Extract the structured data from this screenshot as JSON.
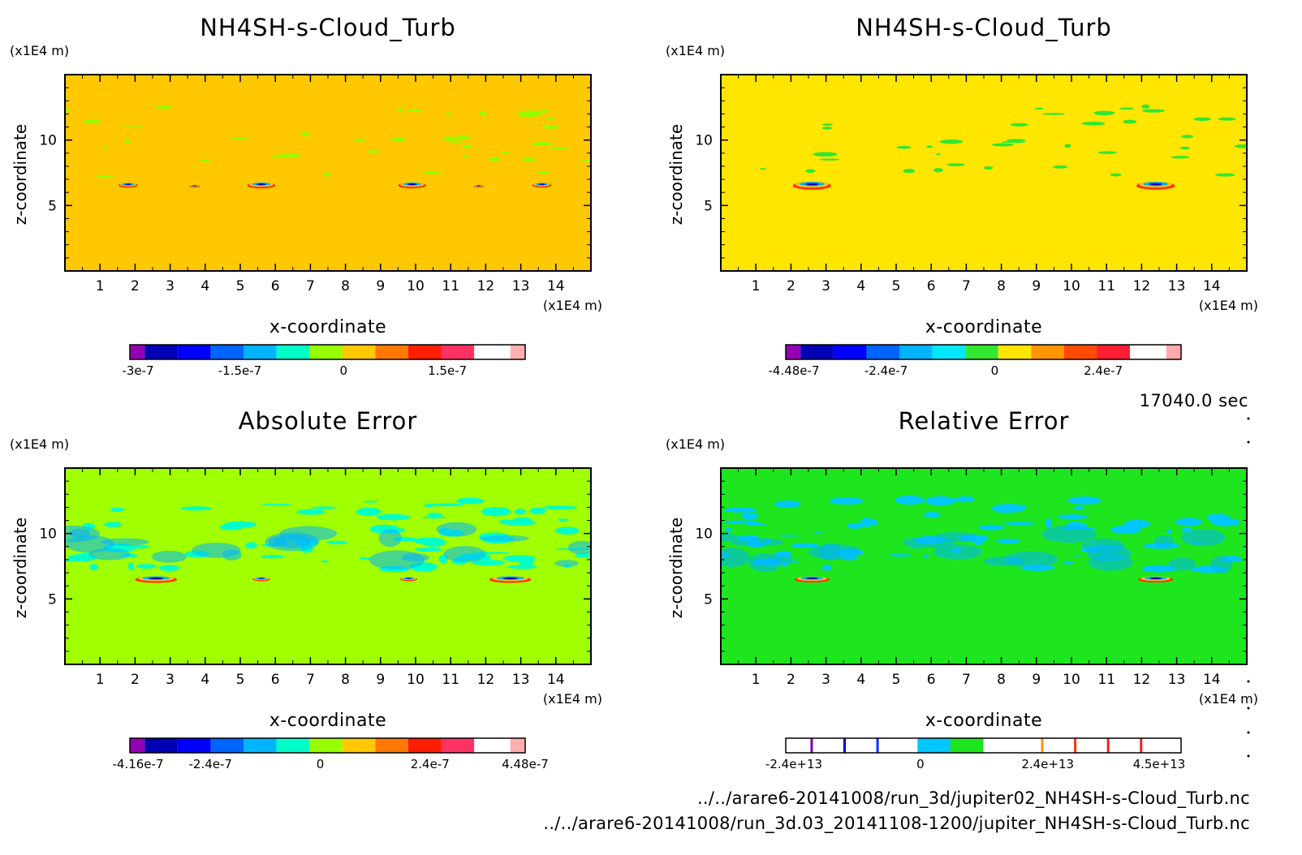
{
  "timestamp": "17040.0 sec",
  "file_paths": [
    "../../arare6-20141008/run_3d/jupiter02_NH4SH-s-Cloud_Turb.nc",
    "../../arare6-20141008/run_3d.03_20141108-1200/jupiter_NH4SH-s-Cloud_Turb.nc"
  ],
  "chart_data": [
    {
      "type": "heatmap",
      "title": "NH4SH-s-Cloud_Turb",
      "xlabel": "x-coordinate",
      "ylabel": "z-coordinate",
      "x_unit": "(x1E4 m)",
      "y_unit": "(x1E4 m)",
      "xlim": [
        0,
        15
      ],
      "ylim": [
        0,
        15
      ],
      "x_ticks": [
        1,
        2,
        3,
        4,
        5,
        6,
        7,
        8,
        9,
        10,
        11,
        12,
        13,
        14
      ],
      "y_ticks": [
        5,
        10
      ],
      "background_color": "#ffc800",
      "colorbar": {
        "colors": [
          "#9600b4",
          "#0000b4",
          "#0000ff",
          "#0064ff",
          "#00b4ff",
          "#00ffc8",
          "#96ff00",
          "#ffc800",
          "#ff7800",
          "#ff1e00",
          "#ff3264",
          "#ffafaf"
        ],
        "labels": [
          {
            "value": -3e-07,
            "text": "-3e-7"
          },
          {
            "value": -1.5e-07,
            "text": "-1.5e-7"
          },
          {
            "value": 0,
            "text": "0"
          },
          {
            "value": 1.5e-07,
            "text": "1.5e-7"
          }
        ]
      },
      "features": [
        {
          "x": 1.8,
          "z": 6.6,
          "w": 0.55,
          "h": 0.35
        },
        {
          "x": 3.7,
          "z": 6.5,
          "w": 0.3,
          "h": 0.2
        },
        {
          "x": 5.6,
          "z": 6.6,
          "w": 0.8,
          "h": 0.45
        },
        {
          "x": 9.9,
          "z": 6.6,
          "w": 0.8,
          "h": 0.45
        },
        {
          "x": 11.8,
          "z": 6.5,
          "w": 0.3,
          "h": 0.2
        },
        {
          "x": 13.6,
          "z": 6.6,
          "w": 0.55,
          "h": 0.35
        }
      ]
    },
    {
      "type": "heatmap",
      "title": "NH4SH-s-Cloud_Turb",
      "xlabel": "x-coordinate",
      "ylabel": "z-coordinate",
      "x_unit": "(x1E4 m)",
      "y_unit": "(x1E4 m)",
      "xlim": [
        0,
        15
      ],
      "ylim": [
        0,
        15
      ],
      "x_ticks": [
        1,
        2,
        3,
        4,
        5,
        6,
        7,
        8,
        9,
        10,
        11,
        12,
        13,
        14
      ],
      "y_ticks": [
        5,
        10
      ],
      "background_color": "#ffe600",
      "colorbar": {
        "colors": [
          "#9600b4",
          "#0000b4",
          "#0000ff",
          "#0064ff",
          "#00b4ff",
          "#00e6ff",
          "#32e632",
          "#ffe600",
          "#ff9600",
          "#ff4b00",
          "#ff1e32",
          "#ffaaaa"
        ],
        "labels": [
          {
            "value": -4.48e-07,
            "text": "-4.48e-7"
          },
          {
            "value": -2.4e-07,
            "text": "-2.4e-7"
          },
          {
            "value": 0,
            "text": "0"
          },
          {
            "value": 2.4e-07,
            "text": "2.4e-7"
          }
        ]
      },
      "features": [
        {
          "x": 2.6,
          "z": 6.6,
          "w": 1.1,
          "h": 0.6
        },
        {
          "x": 12.4,
          "z": 6.6,
          "w": 1.1,
          "h": 0.6
        }
      ]
    },
    {
      "type": "heatmap",
      "title": "Absolute Error",
      "xlabel": "x-coordinate",
      "ylabel": "z-coordinate",
      "x_unit": "(x1E4 m)",
      "y_unit": "(x1E4 m)",
      "xlim": [
        0,
        15
      ],
      "ylim": [
        0,
        15
      ],
      "x_ticks": [
        1,
        2,
        3,
        4,
        5,
        6,
        7,
        8,
        9,
        10,
        11,
        12,
        13,
        14
      ],
      "y_ticks": [
        5,
        10
      ],
      "background_color": "#a0ff00",
      "colorbar": {
        "colors": [
          "#9600b4",
          "#0000b4",
          "#0000ff",
          "#0064ff",
          "#00b4ff",
          "#00ffc8",
          "#96ff00",
          "#ffc800",
          "#ff7800",
          "#ff1e00",
          "#ff3264",
          "#ffafaf"
        ],
        "labels": [
          {
            "value": -4.16e-07,
            "text": "-4.16e-7"
          },
          {
            "value": -2.4e-07,
            "text": "-2.4e-7"
          },
          {
            "value": 0,
            "text": "0"
          },
          {
            "value": 2.4e-07,
            "text": "2.4e-7"
          },
          {
            "value": 4.48e-07,
            "text": "4.48e-7"
          }
        ]
      },
      "features": [
        {
          "x": 2.6,
          "z": 6.55,
          "w": 1.2,
          "h": 0.5
        },
        {
          "x": 5.6,
          "z": 6.55,
          "w": 0.5,
          "h": 0.3
        },
        {
          "x": 9.8,
          "z": 6.55,
          "w": 0.5,
          "h": 0.3
        },
        {
          "x": 12.7,
          "z": 6.55,
          "w": 1.2,
          "h": 0.5
        }
      ]
    },
    {
      "type": "heatmap",
      "title": "Relative Error",
      "xlabel": "x-coordinate",
      "ylabel": "z-coordinate",
      "x_unit": "(x1E4 m)",
      "y_unit": "(x1E4 m)",
      "xlim": [
        0,
        15
      ],
      "ylim": [
        0,
        15
      ],
      "x_ticks": [
        1,
        2,
        3,
        4,
        5,
        6,
        7,
        8,
        9,
        10,
        11,
        12,
        13,
        14
      ],
      "y_ticks": [
        5,
        10
      ],
      "background_color": "#1ee61e",
      "colorbar": {
        "style": "sparse",
        "cells": [
          {
            "color": "#ffffff",
            "bar": "#7800b4"
          },
          {
            "color": "#ffffff",
            "bar": "#0000c8"
          },
          {
            "color": "#ffffff",
            "bar": "#0032ff"
          },
          {
            "color": "#ffffff"
          },
          {
            "color": "#00c8ff"
          },
          {
            "color": "#1ee61e"
          },
          {
            "color": "#ffffff"
          },
          {
            "color": "#ffffff",
            "bar": "#ff9600"
          },
          {
            "color": "#ffffff",
            "bar": "#ff3200"
          },
          {
            "color": "#ffffff",
            "bar": "#ff1e1e"
          },
          {
            "color": "#ffffff",
            "bar": "#ff1e1e"
          },
          {
            "color": "#ffffff"
          }
        ],
        "labels": [
          {
            "value": -24000000000000.0,
            "text": "-2.4e+13"
          },
          {
            "value": 0,
            "text": "0"
          },
          {
            "value": 24000000000000.0,
            "text": "2.4e+13"
          },
          {
            "value": 45000000000000.0,
            "text": "4.5e+13"
          }
        ]
      },
      "features": [
        {
          "x": 2.6,
          "z": 6.55,
          "w": 1.0,
          "h": 0.45
        },
        {
          "x": 12.4,
          "z": 6.55,
          "w": 1.0,
          "h": 0.45
        }
      ]
    }
  ]
}
